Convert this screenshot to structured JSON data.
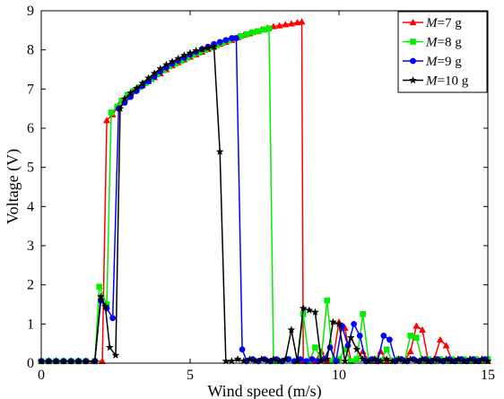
{
  "chart_data": {
    "type": "line",
    "title": "",
    "xlabel": "Wind speed (m/s)",
    "ylabel": "Voltage (V)",
    "xlim": [
      0,
      15
    ],
    "ylim": [
      0,
      9
    ],
    "xticks": [
      0,
      5,
      10,
      15
    ],
    "yticks": [
      0,
      1,
      2,
      3,
      4,
      5,
      6,
      7,
      8,
      9
    ],
    "grid": false,
    "legend_position": "top-right",
    "series": [
      {
        "name": "M=7 g",
        "label_var": "M",
        "label_rest": "=7 g",
        "color": "#ff0000",
        "marker": "triangle",
        "x": [
          0,
          0.25,
          0.5,
          0.75,
          1,
          1.25,
          1.5,
          1.75,
          2.05,
          2.2,
          2.4,
          2.6,
          2.8,
          3.0,
          3.2,
          3.4,
          3.6,
          3.8,
          4.0,
          4.2,
          4.4,
          4.6,
          4.8,
          5.0,
          5.2,
          5.4,
          5.6,
          5.8,
          6.0,
          6.2,
          6.4,
          6.6,
          6.8,
          7.0,
          7.2,
          7.4,
          7.6,
          7.8,
          8.0,
          8.2,
          8.4,
          8.6,
          8.75,
          8.8,
          9.0,
          9.2,
          9.4,
          9.6,
          9.8,
          10.0,
          10.2,
          10.4,
          10.6,
          10.8,
          11.0,
          11.2,
          11.4,
          11.6,
          11.8,
          12.0,
          12.2,
          12.4,
          12.6,
          12.8,
          13.0,
          13.2,
          13.4,
          13.6,
          13.8,
          14.0,
          14.2,
          14.4,
          14.6,
          14.8,
          15.0
        ],
        "y": [
          0.05,
          0.05,
          0.05,
          0.05,
          0.05,
          0.05,
          0.05,
          0.05,
          0.05,
          6.2,
          6.35,
          6.6,
          6.75,
          6.9,
          7.0,
          7.1,
          7.2,
          7.3,
          7.4,
          7.5,
          7.6,
          7.68,
          7.75,
          7.82,
          7.88,
          7.95,
          8.02,
          8.08,
          8.15,
          8.2,
          8.25,
          8.32,
          8.38,
          8.42,
          8.47,
          8.52,
          8.56,
          8.6,
          8.62,
          8.65,
          8.67,
          8.7,
          8.72,
          0.05,
          0.1,
          0.05,
          0.3,
          0.05,
          0.1,
          1.05,
          0.9,
          0.05,
          0.1,
          0.3,
          0.05,
          0.05,
          0.3,
          0.05,
          0.05,
          0.1,
          0.05,
          0.3,
          0.95,
          0.85,
          0.05,
          0.1,
          0.6,
          0.45,
          0.05,
          0.1,
          0.05,
          0.1,
          0.05,
          0.1,
          0.05
        ]
      },
      {
        "name": "M=8 g",
        "label_var": "M",
        "label_rest": "=8 g",
        "color": "#00ee00",
        "marker": "square",
        "x": [
          0,
          0.25,
          0.5,
          0.75,
          1,
          1.25,
          1.5,
          1.8,
          1.95,
          2.2,
          2.35,
          2.55,
          2.7,
          2.9,
          3.1,
          3.3,
          3.5,
          3.7,
          3.9,
          4.1,
          4.3,
          4.5,
          4.7,
          4.9,
          5.1,
          5.3,
          5.5,
          5.7,
          5.9,
          6.1,
          6.3,
          6.5,
          6.7,
          6.9,
          7.1,
          7.3,
          7.5,
          7.65,
          7.8,
          8.0,
          8.3,
          8.6,
          8.8,
          9.0,
          9.2,
          9.4,
          9.6,
          9.8,
          10.0,
          10.2,
          10.4,
          10.6,
          10.8,
          11.0,
          11.2,
          11.4,
          11.6,
          11.8,
          12.0,
          12.2,
          12.4,
          12.6,
          12.8,
          13.0,
          13.2,
          13.4,
          13.6,
          13.8,
          14.0,
          14.2,
          14.4,
          14.6,
          14.8,
          15.0
        ],
        "y": [
          0.05,
          0.05,
          0.05,
          0.05,
          0.05,
          0.05,
          0.05,
          0.05,
          1.95,
          1.5,
          6.4,
          6.55,
          6.7,
          6.85,
          6.95,
          7.05,
          7.15,
          7.25,
          7.38,
          7.48,
          7.58,
          7.65,
          7.72,
          7.8,
          7.87,
          7.93,
          8.0,
          8.06,
          8.12,
          8.18,
          8.24,
          8.3,
          8.35,
          8.4,
          8.45,
          8.48,
          8.52,
          8.55,
          0.05,
          0.05,
          0.1,
          0.05,
          1.25,
          0.05,
          0.4,
          0.1,
          1.6,
          0.05,
          0.1,
          0.35,
          0.05,
          0.1,
          1.25,
          0.05,
          0.1,
          0.05,
          0.35,
          0.05,
          0.1,
          0.05,
          0.7,
          0.65,
          0.05,
          0.1,
          0.05,
          0.1,
          0.05,
          0.1,
          0.05,
          0.1,
          0.05,
          0.1,
          0.05,
          0.1
        ]
      },
      {
        "name": "M=9 g",
        "label_var": "M",
        "label_rest": "=9 g",
        "color": "#0000ff",
        "marker": "circle",
        "x": [
          0,
          0.25,
          0.5,
          0.75,
          1,
          1.25,
          1.5,
          1.8,
          2.0,
          2.2,
          2.4,
          2.6,
          2.8,
          3.0,
          3.2,
          3.4,
          3.6,
          3.8,
          4.0,
          4.2,
          4.4,
          4.6,
          4.8,
          5.0,
          5.2,
          5.4,
          5.6,
          5.8,
          6.0,
          6.2,
          6.4,
          6.55,
          6.75,
          6.9,
          7.1,
          7.3,
          7.5,
          7.7,
          7.9,
          8.1,
          8.3,
          8.5,
          8.7,
          8.9,
          9.1,
          9.3,
          9.5,
          9.7,
          9.9,
          10.1,
          10.3,
          10.5,
          10.7,
          10.9,
          11.1,
          11.3,
          11.5,
          11.7,
          11.9,
          12.1,
          12.3,
          12.5,
          12.7,
          12.9,
          13.1,
          13.3,
          13.5,
          13.7,
          13.9,
          14.1,
          14.3,
          14.5,
          14.7,
          14.9
        ],
        "y": [
          0.05,
          0.05,
          0.05,
          0.05,
          0.05,
          0.05,
          0.05,
          0.05,
          1.6,
          1.4,
          1.15,
          6.5,
          6.65,
          6.8,
          6.95,
          7.08,
          7.2,
          7.32,
          7.45,
          7.55,
          7.65,
          7.73,
          7.8,
          7.88,
          7.95,
          8.02,
          8.08,
          8.15,
          8.2,
          8.25,
          8.3,
          8.3,
          0.35,
          0.05,
          0.1,
          0.05,
          0.1,
          0.05,
          0.1,
          0.05,
          0.1,
          0.05,
          0.1,
          0.05,
          0.1,
          0.05,
          0.1,
          0.4,
          0.05,
          0.95,
          0.45,
          1.0,
          0.7,
          0.05,
          0.1,
          0.05,
          0.7,
          0.6,
          0.05,
          0.1,
          0.05,
          0.1,
          0.05,
          0.1,
          0.05,
          0.1,
          0.05,
          0.1,
          0.05,
          0.1,
          0.05,
          0.1,
          0.05,
          0.1
        ]
      },
      {
        "name": "M=10 g",
        "label_var": "M",
        "label_rest": "=10 g",
        "color": "#000000",
        "marker": "star",
        "x": [
          0,
          0.25,
          0.5,
          0.75,
          1,
          1.25,
          1.5,
          1.8,
          2.0,
          2.15,
          2.3,
          2.5,
          2.65,
          2.8,
          3.0,
          3.2,
          3.4,
          3.6,
          3.8,
          4.0,
          4.2,
          4.4,
          4.6,
          4.8,
          5.0,
          5.2,
          5.4,
          5.6,
          5.8,
          6.0,
          6.2,
          6.4,
          6.6,
          6.8,
          7.0,
          7.2,
          7.4,
          7.6,
          7.8,
          8.0,
          8.2,
          8.4,
          8.6,
          8.8,
          9.0,
          9.2,
          9.4,
          9.6,
          9.8,
          10.0,
          10.2,
          10.4,
          10.6,
          10.8,
          11.0,
          11.2,
          11.4,
          11.6,
          11.8,
          12.0,
          12.2,
          12.4,
          12.6,
          12.8,
          13.0,
          13.2,
          13.4,
          13.6,
          13.8,
          14.0,
          14.2,
          14.4,
          14.6,
          14.8,
          15.0
        ],
        "y": [
          0.05,
          0.05,
          0.05,
          0.05,
          0.05,
          0.05,
          0.05,
          0.05,
          1.7,
          1.45,
          0.4,
          0.2,
          6.5,
          6.75,
          6.9,
          7.02,
          7.15,
          7.28,
          7.4,
          7.52,
          7.62,
          7.7,
          7.78,
          7.86,
          7.92,
          7.98,
          8.02,
          8.05,
          8.08,
          5.4,
          0.05,
          0.05,
          0.1,
          0.05,
          0.1,
          0.05,
          0.1,
          0.05,
          0.1,
          0.05,
          0.1,
          0.85,
          0.05,
          1.4,
          1.35,
          1.3,
          0.05,
          0.1,
          1.05,
          1.0,
          0.05,
          0.65,
          0.35,
          0.1,
          0.05,
          0.1,
          0.05,
          0.1,
          0.05,
          0.1,
          0.05,
          0.1,
          0.05,
          0.1,
          0.05,
          0.1,
          0.05,
          0.1,
          0.05,
          0.1,
          0.05,
          0.1,
          0.05,
          0.1,
          0.05
        ]
      }
    ]
  }
}
